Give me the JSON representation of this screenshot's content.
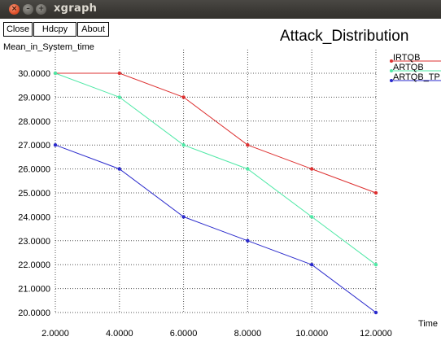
{
  "window": {
    "title": "xgraph",
    "controls": [
      "close-icon",
      "minimize-icon",
      "maximize-icon"
    ]
  },
  "toolbar": {
    "close_label": "Close",
    "hdcpy_label": "Hdcpy",
    "about_label": "About"
  },
  "chart_data": {
    "type": "line",
    "title": "Attack_Distribution",
    "ylabel": "Mean_in_System_time",
    "xlabel": "Time",
    "xlim": [
      2,
      12
    ],
    "ylim": [
      20,
      30
    ],
    "grid": true,
    "legend": "top-right",
    "x_ticks": [
      "2.0000",
      "4.0000",
      "6.0000",
      "8.0000",
      "10.0000",
      "12.0000"
    ],
    "y_ticks": [
      "20.0000",
      "21.0000",
      "22.0000",
      "23.0000",
      "24.0000",
      "25.0000",
      "26.0000",
      "27.0000",
      "28.0000",
      "29.0000",
      "30.0000"
    ],
    "x": [
      2,
      4,
      6,
      8,
      10,
      12
    ],
    "series": [
      {
        "name": "IRTQB",
        "color": "#dd3030",
        "values": [
          30,
          30,
          29,
          27,
          26,
          25
        ]
      },
      {
        "name": "ARTQB",
        "color": "#4fe8a6",
        "values": [
          30,
          29,
          27,
          26,
          24,
          22
        ]
      },
      {
        "name": "ARTQB_TP",
        "color": "#2a2acc",
        "values": [
          27,
          26,
          24,
          23,
          22,
          20
        ]
      }
    ]
  }
}
